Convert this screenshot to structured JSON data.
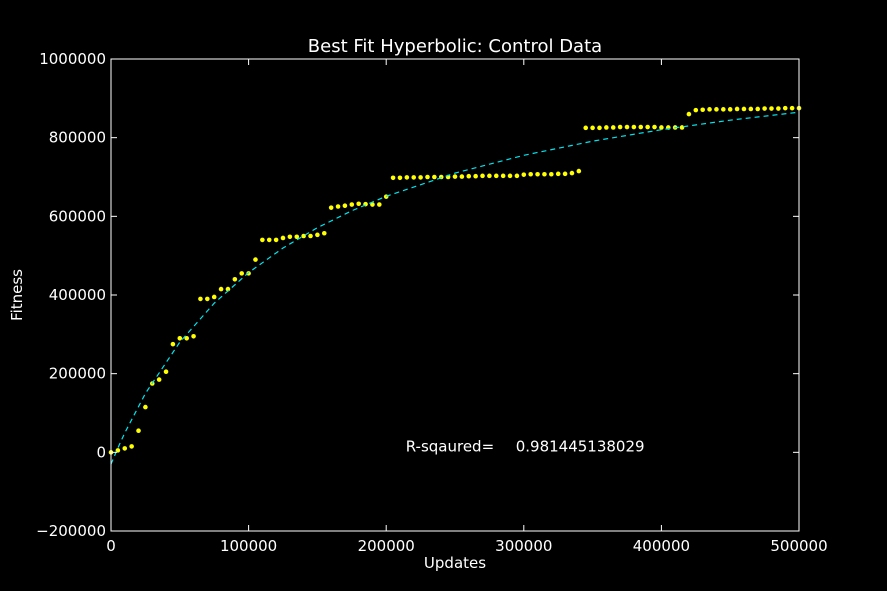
{
  "chart_data": {
    "type": "scatter",
    "title": "Best Fit Hyperbolic: Control Data",
    "xlabel": "Updates",
    "ylabel": "Fitness",
    "annotation": {
      "label": "R-sqaured=",
      "value": "0.981445138029",
      "x": 220000,
      "y": 15000
    },
    "xlim": [
      0,
      500000
    ],
    "ylim": [
      -200000,
      1000000
    ],
    "xticks": [
      0,
      100000,
      200000,
      300000,
      400000,
      500000
    ],
    "yticks": [
      {
        "value": -200000,
        "label": "−200000"
      },
      0,
      200000,
      400000,
      600000,
      800000,
      1000000
    ],
    "series": [
      {
        "kind": "points",
        "color": "#ffff00",
        "x": [
          0,
          5000,
          10000,
          15000,
          20000,
          25000,
          30000,
          35000,
          40000,
          45000,
          50000,
          55000,
          60000,
          65000,
          70000,
          75000,
          80000,
          85000,
          90000,
          95000,
          100000,
          105000,
          110000,
          115000,
          120000,
          125000,
          130000,
          135000,
          140000,
          145000,
          150000,
          155000,
          160000,
          165000,
          170000,
          175000,
          180000,
          185000,
          190000,
          195000,
          200000,
          205000,
          210000,
          215000,
          220000,
          225000,
          230000,
          235000,
          240000,
          245000,
          250000,
          255000,
          260000,
          265000,
          270000,
          275000,
          280000,
          285000,
          290000,
          295000,
          300000,
          305000,
          310000,
          315000,
          320000,
          325000,
          330000,
          335000,
          340000,
          345000,
          350000,
          355000,
          360000,
          365000,
          370000,
          375000,
          380000,
          385000,
          390000,
          395000,
          400000,
          405000,
          410000,
          415000,
          420000,
          425000,
          430000,
          435000,
          440000,
          445000,
          450000,
          455000,
          460000,
          465000,
          470000,
          475000,
          480000,
          485000,
          490000,
          495000,
          500000
        ],
        "values": [
          0,
          5000,
          10000,
          15000,
          55000,
          115000,
          175000,
          185000,
          205000,
          275000,
          290000,
          290000,
          295000,
          390000,
          390000,
          395000,
          415000,
          415000,
          440000,
          455000,
          455000,
          490000,
          540000,
          540000,
          540000,
          545000,
          548000,
          548000,
          550000,
          550000,
          553000,
          557000,
          622000,
          625000,
          627000,
          630000,
          632000,
          631000,
          630000,
          630000,
          650000,
          698000,
          698000,
          699000,
          699000,
          699000,
          700000,
          700000,
          700000,
          700000,
          701000,
          701000,
          702000,
          702000,
          703000,
          703000,
          703000,
          703000,
          703000,
          703000,
          706000,
          707000,
          707000,
          707000,
          707000,
          708000,
          708000,
          710000,
          715000,
          825000,
          825000,
          825000,
          826000,
          826000,
          827000,
          827000,
          827000,
          827000,
          827000,
          827000,
          826000,
          826000,
          826000,
          826000,
          860000,
          870000,
          871000,
          872000,
          872000,
          872000,
          872000,
          873000,
          873000,
          873000,
          873000,
          874000,
          874000,
          874000,
          875000,
          875000,
          875000
        ]
      },
      {
        "kind": "fit",
        "color": "#00e5ee",
        "x": [
          0,
          5000,
          10000,
          25000,
          50000,
          75000,
          100000,
          125000,
          150000,
          175000,
          200000,
          250000,
          300000,
          350000,
          400000,
          450000,
          500000
        ],
        "values": [
          -30000,
          11200,
          49400,
          149700,
          280100,
          379200,
          456900,
          519500,
          571100,
          614200,
          650900,
          709900,
          755200,
          791100,
          820300,
          844500,
          864800
        ]
      }
    ]
  }
}
